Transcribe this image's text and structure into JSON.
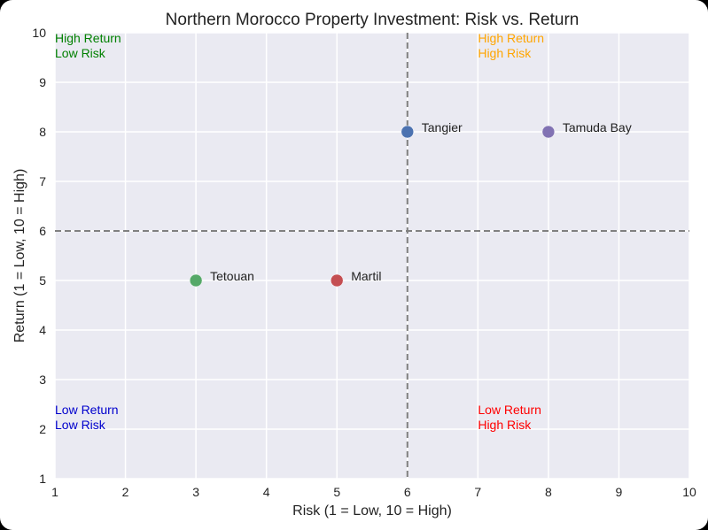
{
  "chart_data": {
    "type": "scatter",
    "title": "Northern Morocco Property Investment: Risk vs. Return",
    "xlabel": "Risk (1 = Low, 10 = High)",
    "ylabel": "Return (1 = Low, 10 = High)",
    "xlim": [
      1,
      10
    ],
    "ylim": [
      1,
      10
    ],
    "xticks": [
      "1",
      "2",
      "3",
      "4",
      "5",
      "6",
      "7",
      "8",
      "9",
      "10"
    ],
    "yticks": [
      "1",
      "2",
      "3",
      "4",
      "5",
      "6",
      "7",
      "8",
      "9",
      "10"
    ],
    "grid": true,
    "points": [
      {
        "label": "Tangier",
        "x": 6,
        "y": 8,
        "color": "#4c72b0"
      },
      {
        "label": "Tamuda Bay",
        "x": 8,
        "y": 8,
        "color": "#8172b3"
      },
      {
        "label": "Tetouan",
        "x": 3,
        "y": 5,
        "color": "#55a868"
      },
      {
        "label": "Martil",
        "x": 5,
        "y": 5,
        "color": "#c44e52"
      }
    ],
    "reference_lines": {
      "x": 6,
      "y": 6,
      "style": "dashed",
      "color": "#808080"
    },
    "quadrant_labels": [
      {
        "line1": "High Return",
        "line2": "Low Risk",
        "x": 1,
        "y": 10,
        "color": "#008000"
      },
      {
        "line1": "High Return",
        "line2": "High Risk",
        "x": 7,
        "y": 10,
        "color": "#ffa500"
      },
      {
        "line1": "Low Return",
        "line2": "Low Risk",
        "x": 1,
        "y": 2.5,
        "color": "#0000cd"
      },
      {
        "line1": "Low Return",
        "line2": "High Risk",
        "x": 7,
        "y": 2.5,
        "color": "#ff0000"
      }
    ]
  }
}
